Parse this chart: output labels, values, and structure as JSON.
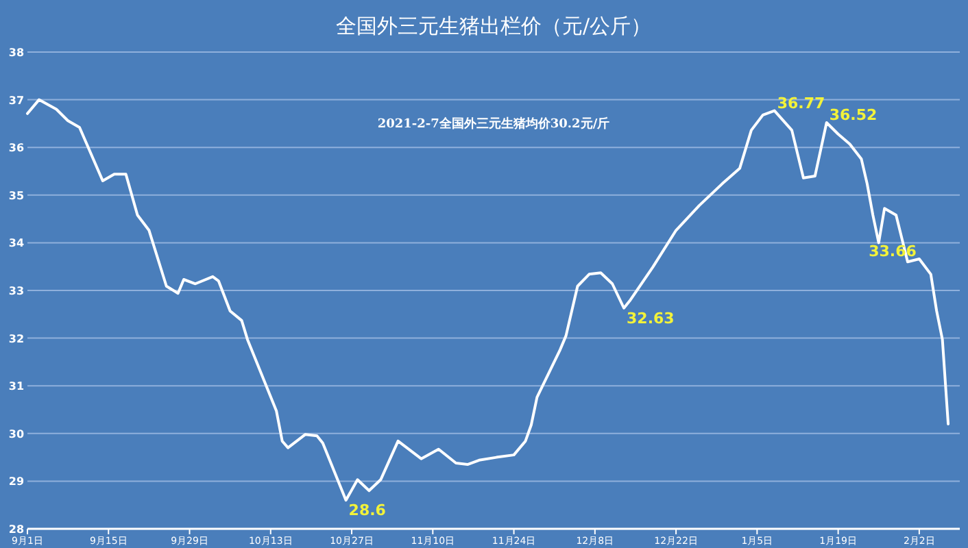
{
  "chart_data": {
    "type": "line",
    "title": "全国外三元生猪出栏价（元/公斤）",
    "x": [
      "2020-09-01",
      "2020-09-03",
      "2020-09-06",
      "2020-09-08",
      "2020-09-10",
      "2020-09-14",
      "2020-09-16",
      "2020-09-18",
      "2020-09-20",
      "2020-09-22",
      "2020-09-25",
      "2020-09-27",
      "2020-09-28",
      "2020-09-30",
      "2020-10-03",
      "2020-10-04",
      "2020-10-06",
      "2020-10-08",
      "2020-10-09",
      "2020-10-14",
      "2020-10-15",
      "2020-10-16",
      "2020-10-19",
      "2020-10-21",
      "2020-10-22",
      "2020-10-26",
      "2020-10-28",
      "2020-10-30",
      "2020-11-01",
      "2020-11-04",
      "2020-11-08",
      "2020-11-11",
      "2020-11-14",
      "2020-11-16",
      "2020-11-18",
      "2020-11-21",
      "2020-11-24",
      "2020-11-26",
      "2020-11-27",
      "2020-11-28",
      "2020-12-02",
      "2020-12-03",
      "2020-12-05",
      "2020-12-07",
      "2020-12-09",
      "2020-12-11",
      "2020-12-13",
      "2020-12-14",
      "2020-12-18",
      "2020-12-22",
      "2020-12-26",
      "2020-12-30",
      "2021-01-02",
      "2021-01-04",
      "2021-01-06",
      "2021-01-08",
      "2021-01-11",
      "2021-01-13",
      "2021-01-15",
      "2021-01-17",
      "2021-01-19",
      "2021-01-21",
      "2021-01-23",
      "2021-01-24",
      "2021-01-25",
      "2021-01-26",
      "2021-01-27",
      "2021-01-29",
      "2021-01-31",
      "2021-02-02",
      "2021-02-04",
      "2021-02-05",
      "2021-02-06",
      "2021-02-07"
    ],
    "series": [
      {
        "color": "#ffffff",
        "values": [
          36.71,
          37.0,
          36.8,
          36.56,
          36.42,
          35.3,
          35.44,
          35.44,
          34.58,
          34.26,
          33.09,
          32.94,
          33.23,
          33.14,
          33.29,
          33.2,
          32.57,
          32.37,
          31.97,
          30.47,
          29.84,
          29.7,
          29.98,
          29.95,
          29.8,
          28.6,
          29.03,
          28.8,
          29.03,
          29.84,
          29.47,
          29.67,
          29.38,
          29.35,
          29.44,
          29.5,
          29.55,
          29.84,
          30.18,
          30.76,
          31.76,
          32.05,
          33.09,
          33.34,
          33.37,
          33.14,
          32.63,
          32.78,
          33.49,
          34.26,
          34.78,
          35.24,
          35.56,
          36.36,
          36.68,
          36.77,
          36.36,
          35.36,
          35.4,
          36.52,
          36.28,
          36.07,
          35.76,
          35.24,
          34.58,
          34.0,
          34.72,
          34.58,
          33.6,
          33.66,
          33.34,
          32.57,
          31.97,
          30.2
        ]
      }
    ],
    "xlim": [
      "2020-09-01",
      "2021-02-09"
    ],
    "xticks": [
      {
        "value": "2020-09-01",
        "label": "9月1日"
      },
      {
        "value": "2020-09-15",
        "label": "9月15日"
      },
      {
        "value": "2020-09-29",
        "label": "9月29日"
      },
      {
        "value": "2020-10-13",
        "label": "10月13日"
      },
      {
        "value": "2020-10-27",
        "label": "10月27日"
      },
      {
        "value": "2020-11-10",
        "label": "11月10日"
      },
      {
        "value": "2020-11-24",
        "label": "11月24日"
      },
      {
        "value": "2020-12-08",
        "label": "12月8日"
      },
      {
        "value": "2020-12-22",
        "label": "12月22日"
      },
      {
        "value": "2021-01-05",
        "label": "1月5日"
      },
      {
        "value": "2021-01-19",
        "label": "1月19日"
      },
      {
        "value": "2021-02-02",
        "label": "2月2日"
      }
    ],
    "ylim": [
      28,
      38
    ],
    "yticks": [
      28,
      29,
      30,
      31,
      32,
      33,
      34,
      35,
      36,
      37,
      38
    ],
    "grid": "y",
    "marker": "none",
    "annotations": [
      "2021-2-7全国外三元生猪均价30.2元/斤",
      {
        "text": "36.77",
        "x": "2021-01-08",
        "y": 36.77
      },
      {
        "text": "36.52",
        "x": "2021-01-17",
        "y": 36.52
      },
      {
        "text": "28.6",
        "x": "2020-10-26",
        "y": 28.6
      },
      {
        "text": "32.63",
        "x": "2020-12-13",
        "y": 32.63
      },
      {
        "text": "33.66",
        "x": "2021-02-02",
        "y": 33.66
      }
    ]
  }
}
